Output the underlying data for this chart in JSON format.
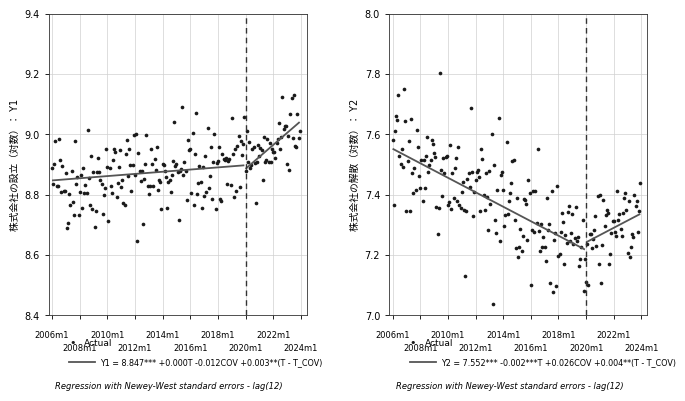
{
  "left_panel": {
    "ylabel": "株式会社の設立（対数）： Y1",
    "ylim": [
      8.4,
      9.4
    ],
    "yticks": [
      8.4,
      8.6,
      8.8,
      9.0,
      9.2,
      9.4
    ],
    "intercept": 8.847,
    "slope_pre": 0.0003,
    "cov_shift": -0.012,
    "slope_post_extra": 0.003,
    "noise_std_pre": 0.085,
    "noise_std_post": 0.06,
    "legend_line": "Y1 = 8.847*** +0.000T -0.012COV +0.003**(T - T_COV)"
  },
  "right_panel": {
    "ylabel": "株式会社の解散（対数）： Y2",
    "ylim": [
      7.0,
      8.0
    ],
    "yticks": [
      7.0,
      7.2,
      7.4,
      7.6,
      7.8,
      8.0
    ],
    "intercept": 7.552,
    "slope_pre": -0.002,
    "cov_shift": 0.026,
    "slope_post_extra": 0.004,
    "noise_std_pre": 0.1,
    "noise_std_post": 0.08,
    "legend_line": "Y2 = 7.552*** -0.002***T +0.026COV +0.004**(T - T_COV)"
  },
  "xtick_labels_top": [
    "2006m1",
    "2010m1",
    "2014m1",
    "2018m1",
    "2022m1"
  ],
  "xtick_labels_bottom": [
    "2008m1",
    "2012m1",
    "2016m1",
    "2020m1",
    "2024m1"
  ],
  "xtick_top_positions": [
    0,
    48,
    96,
    144,
    192
  ],
  "xtick_bottom_positions": [
    24,
    72,
    120,
    168,
    216
  ],
  "x_total_months": 216,
  "break_month": 168,
  "dot_color": "#1a1a1a",
  "line_color": "#555555",
  "legend_dot_label": "Actual",
  "footnote": "Regression with Newey-West standard errors - lag(12)",
  "background_color": "#ffffff",
  "grid_color": "#d0d0d0",
  "dot_size": 7
}
